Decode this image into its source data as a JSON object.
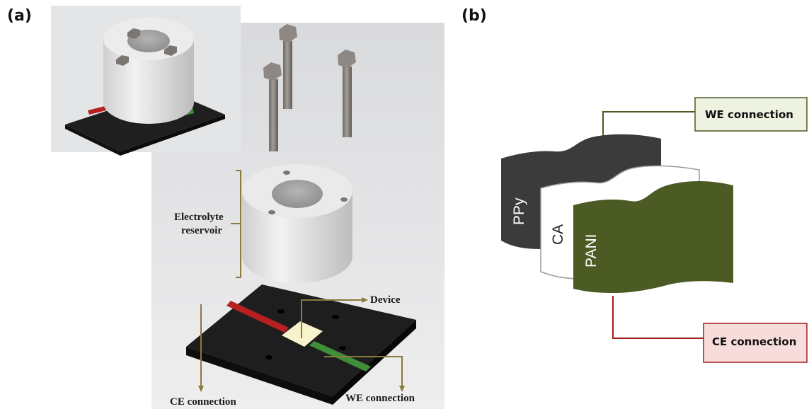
{
  "panel_a": {
    "label": "(a)",
    "annotations": {
      "reservoir_line1": "Electrolyte",
      "reservoir_line2": "reservoir",
      "device": "Device",
      "ce_connection": "CE connection",
      "we_connection": "WE connection"
    }
  },
  "panel_b": {
    "label": "(b)",
    "layers": {
      "ppy": "PPy",
      "ca": "CA",
      "pani": "PANI"
    },
    "boxes": {
      "we_connection": "WE connection",
      "ce_connection": "CE connection"
    }
  },
  "colors": {
    "annotation_line": "#8a7a3c",
    "ppy_fill": "#3b3b3b",
    "ca_fill": "#ffffff",
    "pani_fill": "#4c5b23",
    "we_box_fill": "#eef2e0",
    "we_box_stroke": "#4c5b23",
    "ce_box_fill": "#f7dcdc",
    "ce_box_stroke": "#a51c1c",
    "base_plate": "#1e1e1e",
    "red_strip": "#b72020",
    "green_strip": "#3f8f3a",
    "device_square": "#f7f3cc"
  }
}
